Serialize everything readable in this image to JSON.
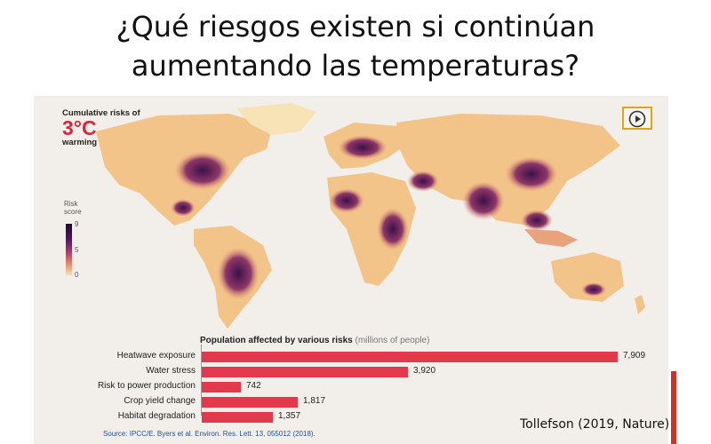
{
  "slide": {
    "title_line1": "¿Qué riesgos existen si continúan",
    "title_line2": "aumentando las temperaturas?"
  },
  "map": {
    "heading": "Cumulative risks of",
    "big_temp": "3°C",
    "heading_sub": "warming",
    "legend_title_1": "Risk",
    "legend_title_2": "score",
    "legend_ticks": [
      "9",
      "5",
      "0"
    ],
    "colors": {
      "high": "#1c0b2a",
      "mid": "#a5406a",
      "low": "#f7e3b6",
      "land_base": "#f3c489"
    },
    "play_icon": "play-icon"
  },
  "bars": {
    "title": "Population affected by various risks",
    "unit": "(millions of people)",
    "bar_color": "#e23a4c",
    "items": [
      {
        "label": "Heatwave exposure",
        "value": 7909,
        "value_text": "7,909"
      },
      {
        "label": "Water stress",
        "value": 3920,
        "value_text": "3,920"
      },
      {
        "label": "Risk to power production",
        "value": 742,
        "value_text": "742"
      },
      {
        "label": "Crop yield change",
        "value": 1817,
        "value_text": "1,817"
      },
      {
        "label": "Habitat degradation",
        "value": 1357,
        "value_text": "1,357"
      }
    ]
  },
  "chart_data": {
    "type": "bar",
    "title": "Population affected by various risks",
    "xlabel": "(millions of people)",
    "ylabel": "",
    "categories": [
      "Heatwave exposure",
      "Water stress",
      "Risk to power production",
      "Crop yield change",
      "Habitat degradation"
    ],
    "values": [
      7909,
      3920,
      742,
      1817,
      1357
    ],
    "xlim": [
      0,
      7909
    ],
    "orientation": "horizontal",
    "grid": false
  },
  "source": "Source: IPCC/E. Byers et al. Environ. Res. Lett. 13, 055012 (2018).",
  "citation": "Tollefson (2019, Nature)"
}
